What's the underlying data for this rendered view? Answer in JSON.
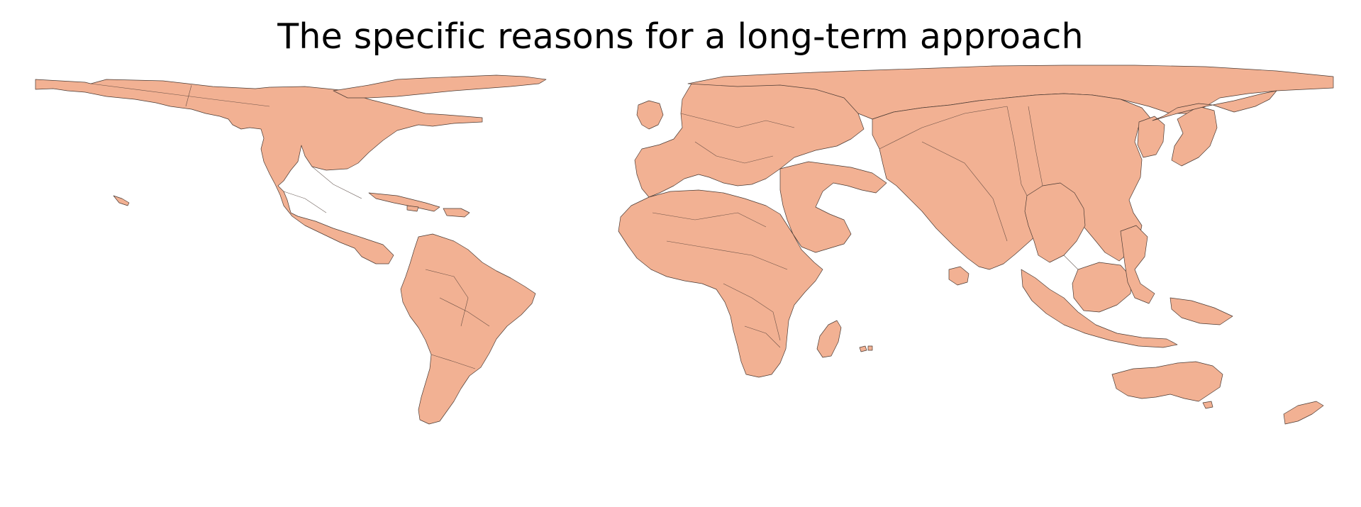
{
  "title": "The specific reasons for a long-term approach",
  "map": {
    "projection": "cartogram",
    "land_color": "#F2B193",
    "border_color": "#4A3A33",
    "background": "#FFFFFF"
  }
}
